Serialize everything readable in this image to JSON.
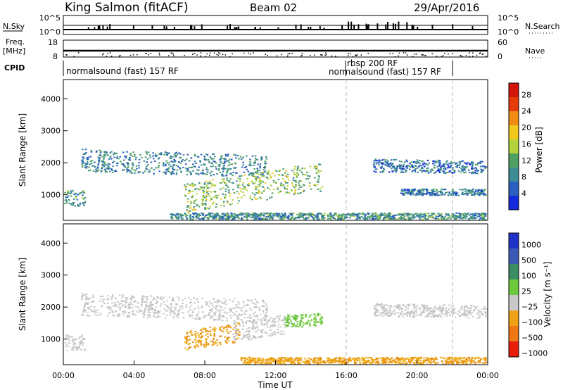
{
  "header": {
    "station": "King Salmon (fitACF)",
    "beam": "Beam 02",
    "date": "29/Apr/2016"
  },
  "summary_panels": {
    "nsky_label": "N.Sky",
    "nsky_ticks": [
      "10^5",
      "10^0"
    ],
    "nsearch_label": "N.Search",
    "nsearch_ticks": [
      "10^5",
      "10^0"
    ],
    "freq_label": "Freq.",
    "freq_unit": "[MHz]",
    "freq_ticks": [
      "18",
      "8"
    ],
    "nave_label": "Nave",
    "nave_ticks": [
      "60",
      "0"
    ],
    "cpid_label": "CPID",
    "cpid_segments": [
      {
        "label": "normalsound (fast) 157 RF",
        "start_hour": 0,
        "end_hour": 15.9
      },
      {
        "label": "rbsp 200 RF",
        "start_hour": 15.9,
        "end_hour": 22.0
      },
      {
        "label": "normalsound (fast) 157 RF",
        "start_hour": 15.9,
        "end_hour": 22.0
      }
    ]
  },
  "chart_data": [
    {
      "type": "heatmap",
      "title": "",
      "xlabel": "",
      "ylabel": "Slant Range [km]",
      "xlim_hours": [
        0,
        24
      ],
      "ylim": [
        200,
        4600
      ],
      "ytick_labels": [
        "1000",
        "2000",
        "3000",
        "4000"
      ],
      "yticks": [
        1000,
        2000,
        3000,
        4000
      ],
      "colorbar": {
        "label": "Power [dB]",
        "ticks": [
          "4",
          "8",
          "12",
          "16",
          "20",
          "24",
          "28"
        ],
        "range": [
          0,
          30
        ],
        "colors": [
          "#1428dc",
          "#2a5ec0",
          "#3c8c96",
          "#50a064",
          "#b4d23c",
          "#f0c81e",
          "#f08c14",
          "#e63c0a",
          "#d2140a"
        ]
      },
      "echo_regions": [
        {
          "name": "region-a",
          "t_start": 1.0,
          "t_end": 11.5,
          "r_start": 1650,
          "r_end": 2350,
          "slope": -20,
          "level": 8
        },
        {
          "name": "region-b",
          "t_start": 6.8,
          "t_end": 14.6,
          "r_start": 800,
          "r_end": 1700,
          "slope": 85,
          "level": 14
        },
        {
          "name": "region-c",
          "t_start": 0.0,
          "t_end": 1.2,
          "r_start": 650,
          "r_end": 1150,
          "slope": 0,
          "level": 10
        },
        {
          "name": "region-d",
          "t_start": 17.5,
          "t_end": 24.0,
          "r_start": 1700,
          "r_end": 2100,
          "slope": -10,
          "level": 6
        },
        {
          "name": "region-e",
          "t_start": 19.0,
          "t_end": 24.0,
          "r_start": 1000,
          "r_end": 1200,
          "slope": 0,
          "level": 7
        },
        {
          "name": "ground-band",
          "t_start": 6.0,
          "t_end": 24.0,
          "r_start": 250,
          "r_end": 450,
          "slope": 0,
          "level": 9
        }
      ]
    },
    {
      "type": "heatmap",
      "title": "",
      "xlabel": "Time UT",
      "ylabel": "Slant Range [km]",
      "xlim_hours": [
        0,
        24
      ],
      "ylim": [
        200,
        4600
      ],
      "xtick_labels": [
        "00:00",
        "04:00",
        "08:00",
        "12:00",
        "16:00",
        "20:00",
        "00:00"
      ],
      "xticks_hours": [
        0,
        4,
        8,
        12,
        16,
        20,
        24
      ],
      "ytick_labels": [
        "1000",
        "2000",
        "3000",
        "4000"
      ],
      "yticks": [
        1000,
        2000,
        3000,
        4000
      ],
      "colorbar": {
        "label": "Velocity [m s⁻¹]",
        "ticks": [
          "1000",
          "500",
          "100",
          "25",
          "−25",
          "−100",
          "−500",
          "−1000"
        ],
        "colors": [
          "#1e32c8",
          "#3c5ab4",
          "#3c8c64",
          "#6ec83c",
          "#c8c8c8",
          "#f0a014",
          "#f07814",
          "#e61e0a"
        ]
      },
      "echo_regions": [
        {
          "name": "region-a",
          "t_start": 1.0,
          "t_end": 11.5,
          "r_start": 1650,
          "r_end": 2350,
          "slope": -20,
          "level": "gray"
        },
        {
          "name": "region-b-neg",
          "t_start": 6.8,
          "t_end": 10.0,
          "r_start": 800,
          "r_end": 1400,
          "slope": 85,
          "level": "orange"
        },
        {
          "name": "region-b-gray",
          "t_start": 9.5,
          "t_end": 12.5,
          "r_start": 1050,
          "r_end": 1650,
          "slope": 85,
          "level": "gray"
        },
        {
          "name": "region-b-pos",
          "t_start": 12.5,
          "t_end": 14.6,
          "r_start": 1400,
          "r_end": 1800,
          "slope": 30,
          "level": "green"
        },
        {
          "name": "region-c",
          "t_start": 0.0,
          "t_end": 1.2,
          "r_start": 650,
          "r_end": 1150,
          "slope": 0,
          "level": "gray"
        },
        {
          "name": "region-d",
          "t_start": 17.5,
          "t_end": 24.0,
          "r_start": 1700,
          "r_end": 2100,
          "slope": -10,
          "level": "gray"
        },
        {
          "name": "ground-band",
          "t_start": 10.0,
          "t_end": 24.0,
          "r_start": 250,
          "r_end": 450,
          "slope": 0,
          "level": "orange"
        }
      ]
    }
  ],
  "colors": {
    "marker_line": "#b4b4b4",
    "frame": "#000000"
  },
  "markers_hours": [
    16.0,
    22.0
  ]
}
